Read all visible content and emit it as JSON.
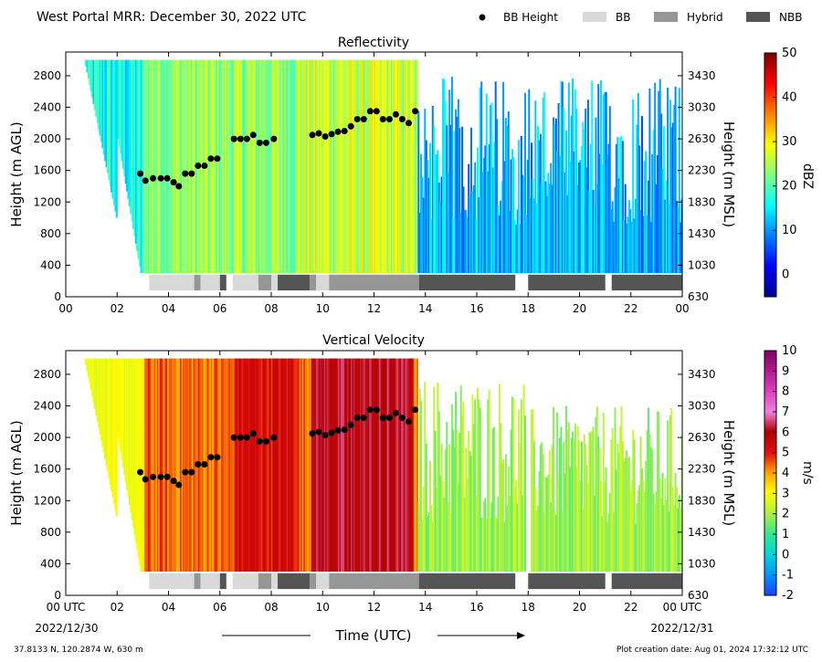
{
  "header": {
    "title": "West Portal MRR:  December 30, 2022 UTC",
    "legend": [
      {
        "label": "BB Height",
        "marker": "dot",
        "color": "#000000"
      },
      {
        "label": "BB",
        "marker": "box",
        "color": "#d9d9d9"
      },
      {
        "label": "Hybrid",
        "marker": "box",
        "color": "#969696"
      },
      {
        "label": "NBB",
        "marker": "box",
        "color": "#555555"
      }
    ]
  },
  "footer": {
    "location": "37.8133 N, 120.2874 W, 630 m",
    "creation_date": "Plot creation date: Aug 01, 2024 17:32:12 UTC",
    "xlabel": "Time (UTC)",
    "start_date": "2022/12/30",
    "end_date": "2022/12/31"
  },
  "colors": {
    "bb": "#d9d9d9",
    "hybrid": "#969696",
    "nbb": "#555555",
    "bb_height_marker": "#000000"
  },
  "chart_data": [
    {
      "type": "heatmap",
      "title": "Reflectivity",
      "ylabel": "Height (m AGL)",
      "y2label": "Height (m MSL)",
      "xlim": [
        0,
        24
      ],
      "ylim": [
        0,
        3100
      ],
      "xticks": [
        "00",
        "02",
        "04",
        "06",
        "08",
        "10",
        "12",
        "14",
        "16",
        "18",
        "20",
        "22",
        "00"
      ],
      "yticks": [
        0,
        400,
        800,
        1200,
        1600,
        2000,
        2400,
        2800
      ],
      "y2ticks": [
        630,
        1030,
        1430,
        1830,
        2230,
        2630,
        3030,
        3430
      ],
      "colorbar": {
        "label": "dBZ",
        "min": -5,
        "max": 50,
        "ticks": [
          0,
          10,
          20,
          30,
          40,
          50
        ],
        "cmap": "jet"
      },
      "bb_height": [
        {
          "t": 2.9,
          "h": 1560
        },
        {
          "t": 3.1,
          "h": 1470
        },
        {
          "t": 3.4,
          "h": 1500
        },
        {
          "t": 3.7,
          "h": 1500
        },
        {
          "t": 3.95,
          "h": 1500
        },
        {
          "t": 4.2,
          "h": 1450
        },
        {
          "t": 4.4,
          "h": 1400
        },
        {
          "t": 4.65,
          "h": 1560
        },
        {
          "t": 4.9,
          "h": 1560
        },
        {
          "t": 5.15,
          "h": 1660
        },
        {
          "t": 5.4,
          "h": 1660
        },
        {
          "t": 5.65,
          "h": 1750
        },
        {
          "t": 5.9,
          "h": 1750
        },
        {
          "t": 6.55,
          "h": 2000
        },
        {
          "t": 6.8,
          "h": 2000
        },
        {
          "t": 7.05,
          "h": 2000
        },
        {
          "t": 7.3,
          "h": 2050
        },
        {
          "t": 7.55,
          "h": 1950
        },
        {
          "t": 7.8,
          "h": 1950
        },
        {
          "t": 8.1,
          "h": 2000
        },
        {
          "t": 9.6,
          "h": 2050
        },
        {
          "t": 9.85,
          "h": 2070
        },
        {
          "t": 10.1,
          "h": 2030
        },
        {
          "t": 10.35,
          "h": 2060
        },
        {
          "t": 10.6,
          "h": 2090
        },
        {
          "t": 10.85,
          "h": 2100
        },
        {
          "t": 11.1,
          "h": 2160
        },
        {
          "t": 11.35,
          "h": 2250
        },
        {
          "t": 11.6,
          "h": 2250
        },
        {
          "t": 11.85,
          "h": 2350
        },
        {
          "t": 12.1,
          "h": 2350
        },
        {
          "t": 12.35,
          "h": 2250
        },
        {
          "t": 12.6,
          "h": 2250
        },
        {
          "t": 12.85,
          "h": 2310
        },
        {
          "t": 13.1,
          "h": 2250
        },
        {
          "t": 13.35,
          "h": 2200
        },
        {
          "t": 13.6,
          "h": 2350
        }
      ],
      "classification": [
        {
          "class": "bb",
          "start": 3.25,
          "end": 5.0
        },
        {
          "class": "hybrid",
          "start": 5.0,
          "end": 5.25
        },
        {
          "class": "bb",
          "start": 5.25,
          "end": 6.0
        },
        {
          "class": "nbb",
          "start": 6.0,
          "end": 6.25
        },
        {
          "class": "bb",
          "start": 6.5,
          "end": 7.5
        },
        {
          "class": "hybrid",
          "start": 7.5,
          "end": 8.0
        },
        {
          "class": "bb",
          "start": 8.0,
          "end": 8.25
        },
        {
          "class": "nbb",
          "start": 8.25,
          "end": 9.5
        },
        {
          "class": "hybrid",
          "start": 9.5,
          "end": 9.75
        },
        {
          "class": "bb",
          "start": 9.75,
          "end": 10.25
        },
        {
          "class": "hybrid",
          "start": 10.25,
          "end": 13.75
        },
        {
          "class": "nbb",
          "start": 13.75,
          "end": 17.5
        },
        {
          "class": "nbb",
          "start": 18.0,
          "end": 21.0
        },
        {
          "class": "nbb",
          "start": 21.25,
          "end": 24.0
        }
      ]
    },
    {
      "type": "heatmap",
      "title": "Vertical Velocity",
      "ylabel": "Height (m AGL)",
      "y2label": "Height (m MSL)",
      "xlim": [
        0,
        24
      ],
      "ylim": [
        0,
        3100
      ],
      "xticks": [
        "00 UTC",
        "02",
        "04",
        "06",
        "08",
        "10",
        "12",
        "14",
        "16",
        "18",
        "20",
        "22",
        "00 UTC"
      ],
      "yticks": [
        0,
        400,
        800,
        1200,
        1600,
        2000,
        2400,
        2800
      ],
      "y2ticks": [
        630,
        1030,
        1430,
        1830,
        2230,
        2630,
        3030,
        3430
      ],
      "colorbar": {
        "label": "m/s",
        "min": -2,
        "max": 10,
        "ticks": [
          -2,
          -1,
          0,
          1,
          2,
          3,
          4,
          5,
          6,
          7,
          8,
          9,
          10
        ],
        "cmap": "velocity"
      },
      "bb_height": [
        {
          "t": 2.9,
          "h": 1560
        },
        {
          "t": 3.1,
          "h": 1470
        },
        {
          "t": 3.4,
          "h": 1500
        },
        {
          "t": 3.7,
          "h": 1500
        },
        {
          "t": 3.95,
          "h": 1500
        },
        {
          "t": 4.2,
          "h": 1450
        },
        {
          "t": 4.4,
          "h": 1400
        },
        {
          "t": 4.65,
          "h": 1560
        },
        {
          "t": 4.9,
          "h": 1560
        },
        {
          "t": 5.15,
          "h": 1660
        },
        {
          "t": 5.4,
          "h": 1660
        },
        {
          "t": 5.65,
          "h": 1750
        },
        {
          "t": 5.9,
          "h": 1750
        },
        {
          "t": 6.55,
          "h": 2000
        },
        {
          "t": 6.8,
          "h": 2000
        },
        {
          "t": 7.05,
          "h": 2000
        },
        {
          "t": 7.3,
          "h": 2050
        },
        {
          "t": 7.55,
          "h": 1950
        },
        {
          "t": 7.8,
          "h": 1950
        },
        {
          "t": 8.1,
          "h": 2000
        },
        {
          "t": 9.6,
          "h": 2050
        },
        {
          "t": 9.85,
          "h": 2070
        },
        {
          "t": 10.1,
          "h": 2030
        },
        {
          "t": 10.35,
          "h": 2060
        },
        {
          "t": 10.6,
          "h": 2090
        },
        {
          "t": 10.85,
          "h": 2100
        },
        {
          "t": 11.1,
          "h": 2160
        },
        {
          "t": 11.35,
          "h": 2250
        },
        {
          "t": 11.6,
          "h": 2250
        },
        {
          "t": 11.85,
          "h": 2350
        },
        {
          "t": 12.1,
          "h": 2350
        },
        {
          "t": 12.35,
          "h": 2250
        },
        {
          "t": 12.6,
          "h": 2250
        },
        {
          "t": 12.85,
          "h": 2310
        },
        {
          "t": 13.1,
          "h": 2250
        },
        {
          "t": 13.35,
          "h": 2200
        },
        {
          "t": 13.6,
          "h": 2350
        }
      ],
      "classification": [
        {
          "class": "bb",
          "start": 3.25,
          "end": 5.0
        },
        {
          "class": "hybrid",
          "start": 5.0,
          "end": 5.25
        },
        {
          "class": "bb",
          "start": 5.25,
          "end": 6.0
        },
        {
          "class": "nbb",
          "start": 6.0,
          "end": 6.25
        },
        {
          "class": "bb",
          "start": 6.5,
          "end": 7.5
        },
        {
          "class": "hybrid",
          "start": 7.5,
          "end": 8.0
        },
        {
          "class": "bb",
          "start": 8.0,
          "end": 8.25
        },
        {
          "class": "nbb",
          "start": 8.25,
          "end": 9.5
        },
        {
          "class": "hybrid",
          "start": 9.5,
          "end": 9.75
        },
        {
          "class": "bb",
          "start": 9.75,
          "end": 10.25
        },
        {
          "class": "hybrid",
          "start": 10.25,
          "end": 13.75
        },
        {
          "class": "nbb",
          "start": 13.75,
          "end": 17.5
        },
        {
          "class": "nbb",
          "start": 18.0,
          "end": 21.0
        },
        {
          "class": "nbb",
          "start": 21.25,
          "end": 24.0
        }
      ]
    }
  ]
}
